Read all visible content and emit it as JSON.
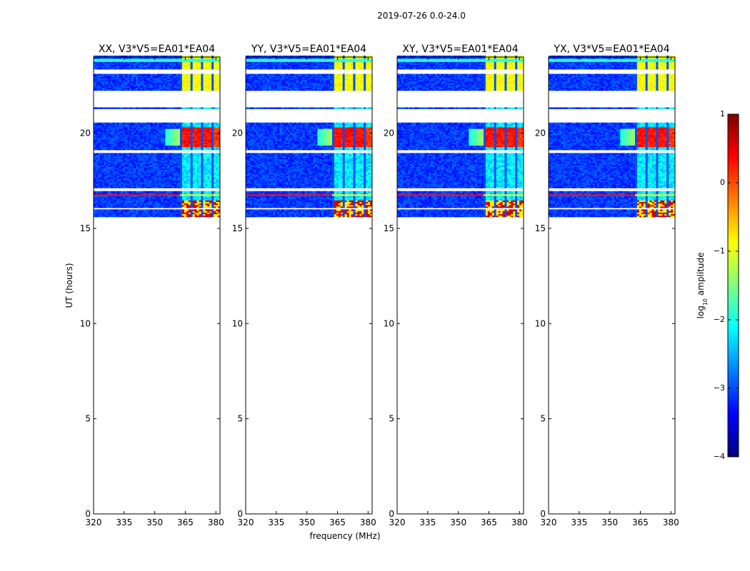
{
  "chart_data": {
    "type": "heatmap",
    "title": "2019-07-26 0.0-24.0",
    "xlabel": "frequency (MHz)",
    "ylabel": "UT (hours)",
    "xlim": [
      320,
      382
    ],
    "ylim": [
      0,
      24
    ],
    "x_ticks": [
      320,
      335,
      350,
      365,
      380
    ],
    "y_ticks": [
      0,
      5,
      10,
      15,
      20
    ],
    "panels": [
      {
        "title": "XX, V3*V5=EA01*EA04",
        "pol": "XX"
      },
      {
        "title": "YY, V3*V5=EA01*EA04",
        "pol": "YY"
      },
      {
        "title": "XY, V3*V5=EA01*EA04",
        "pol": "XY"
      },
      {
        "title": "YX, V3*V5=EA01*EA04",
        "pol": "YX"
      }
    ],
    "data_coverage_ut": [
      15.6,
      24.0
    ],
    "flagged_gaps_ut": [
      [
        23.1,
        23.3
      ],
      [
        21.3,
        22.2
      ],
      [
        20.55,
        21.25
      ],
      [
        18.95,
        19.1
      ],
      [
        16.95,
        17.05
      ],
      [
        15.95,
        16.05
      ]
    ],
    "rfi_band_mhz": [
      362,
      381
    ],
    "colorbar": {
      "label": "log₁₀ amplitude",
      "label_main": "log",
      "label_sub": "10",
      "label_rest": " amplitude",
      "range": [
        -4,
        1
      ],
      "ticks": [
        1,
        0,
        -1,
        -2,
        -3,
        -4
      ],
      "tick_labels": [
        "1",
        "0",
        "−1",
        "−2",
        "−3",
        "−4"
      ],
      "colormap": "jet",
      "stops": [
        "#00007f",
        "#0000ff",
        "#007fff",
        "#00ffff",
        "#7fff7f",
        "#ffff00",
        "#ff7f00",
        "#ff0000",
        "#7f0000"
      ]
    }
  }
}
